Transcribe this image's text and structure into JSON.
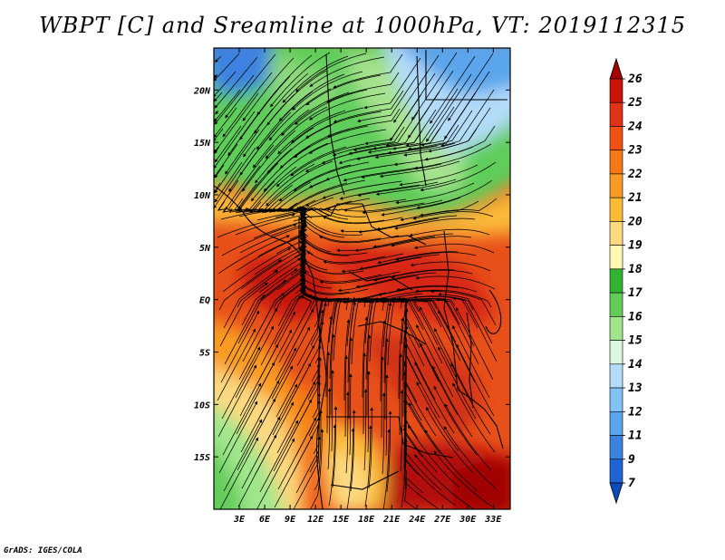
{
  "title": "WBPT [C] and Sreamline at 1000hPa, VT: 2019112315",
  "footer": "GrADS: IGES/COLA",
  "map": {
    "lon_range": [
      0,
      35
    ],
    "lat_range": [
      -20,
      24
    ],
    "x_ticks": [
      "3E",
      "6E",
      "9E",
      "12E",
      "15E",
      "18E",
      "21E",
      "24E",
      "27E",
      "30E",
      "33E"
    ],
    "x_tick_values": [
      3,
      6,
      9,
      12,
      15,
      18,
      21,
      24,
      27,
      30,
      33
    ],
    "y_ticks": [
      "20N",
      "15N",
      "10N",
      "5N",
      "EQ",
      "5S",
      "10S",
      "15S"
    ],
    "y_tick_values": [
      20,
      15,
      10,
      5,
      0,
      -5,
      -10,
      -15
    ]
  },
  "colorbar": {
    "levels": [
      "26",
      "25",
      "24",
      "23",
      "22",
      "21",
      "20",
      "19",
      "18",
      "17",
      "16",
      "15",
      "14",
      "13",
      "12",
      "11",
      "9",
      "7"
    ],
    "colors": [
      "#a50000",
      "#c8140a",
      "#e03214",
      "#f05014",
      "#f57814",
      "#fa9b23",
      "#fbbb37",
      "#fcd980",
      "#fff7b3",
      "#32b432",
      "#64cd5a",
      "#a0e68c",
      "#dcf7e1",
      "#b4dcfa",
      "#82c3f5",
      "#5aa5eb",
      "#3c82e1",
      "#1e64d2",
      "#0a4bbe"
    ]
  }
}
